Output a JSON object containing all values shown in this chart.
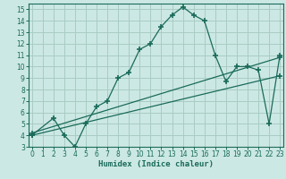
{
  "xlabel": "Humidex (Indice chaleur)",
  "bg_color": "#cce8e4",
  "grid_color": "#a8ccc4",
  "line_color": "#1a6b5a",
  "xlim": [
    -0.3,
    23.3
  ],
  "ylim": [
    3,
    15.5
  ],
  "xticks": [
    0,
    1,
    2,
    3,
    4,
    5,
    6,
    7,
    8,
    9,
    10,
    11,
    12,
    13,
    14,
    15,
    16,
    17,
    18,
    19,
    20,
    21,
    22,
    23
  ],
  "yticks": [
    3,
    4,
    5,
    6,
    7,
    8,
    9,
    10,
    11,
    12,
    13,
    14,
    15
  ],
  "series1_x": [
    0,
    2,
    3,
    4,
    5,
    6,
    7,
    8,
    9,
    10,
    11,
    12,
    13,
    14,
    15,
    16,
    17,
    18,
    19,
    20,
    21,
    22,
    23
  ],
  "series1_y": [
    4,
    5.5,
    4,
    3,
    5,
    6.5,
    7.0,
    9.0,
    9.5,
    11.5,
    12.0,
    13.5,
    14.5,
    15.2,
    14.5,
    14.0,
    11.0,
    8.7,
    10.0,
    10.0,
    9.7,
    5.0,
    11.0
  ],
  "series2_x": [
    0,
    23
  ],
  "series2_y": [
    4.2,
    10.8
  ],
  "series3_x": [
    0,
    23
  ],
  "series3_y": [
    4.0,
    9.2
  ]
}
